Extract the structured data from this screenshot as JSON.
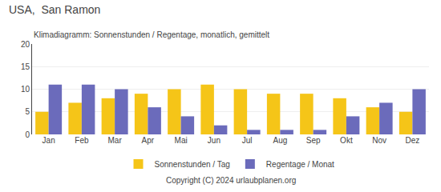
{
  "chart_data": {
    "type": "bar",
    "title": "USA,  San Ramon",
    "subtitle": "Klimadiagramm: Sonnenstunden / Regentage, monatlich, gemittelt",
    "annotations": [
      "Copyright (C) 2024 urlaubplanen.org"
    ],
    "categories": [
      "Jan",
      "Feb",
      "Mar",
      "Apr",
      "Mai",
      "Jun",
      "Jul",
      "Aug",
      "Sep",
      "Okt",
      "Nov",
      "Dez"
    ],
    "series": [
      {
        "name": "Sonnenstunden / Tag",
        "color": "#F5C518",
        "values": [
          5,
          7,
          8,
          9,
          10,
          11,
          10,
          9,
          9,
          8,
          6,
          5
        ]
      },
      {
        "name": "Regentage / Monat",
        "color": "#6B6BBB",
        "values": [
          11,
          11,
          10,
          6,
          4,
          2,
          1,
          1,
          1,
          4,
          7,
          10
        ]
      }
    ],
    "ylim": [
      0,
      20
    ],
    "yticks": [
      0,
      5,
      10,
      15,
      20
    ],
    "grid": true,
    "legend": "bottom"
  }
}
